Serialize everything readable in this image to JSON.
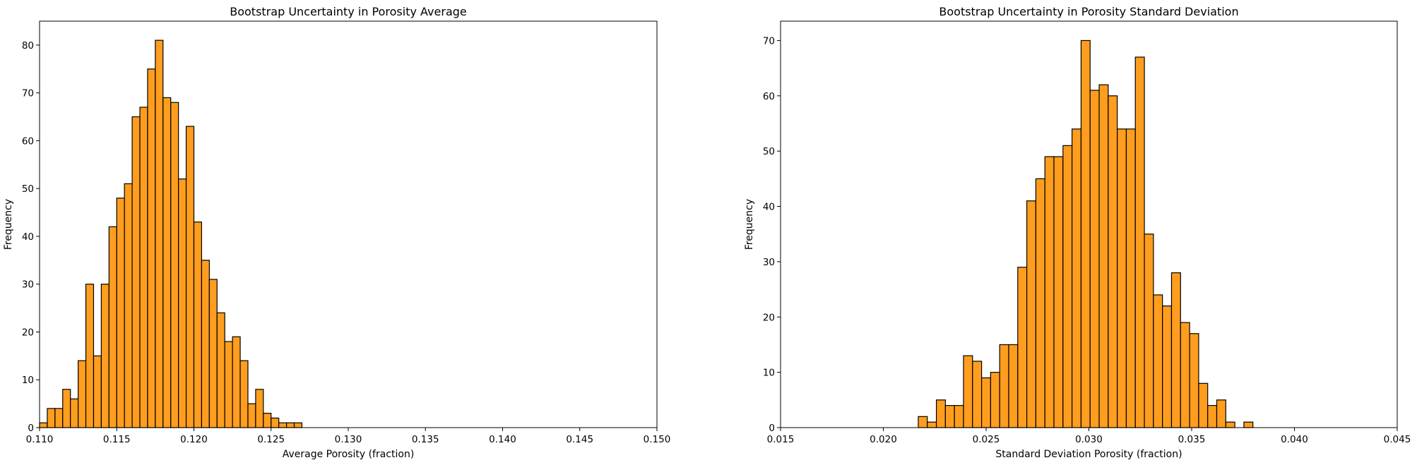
{
  "colors": {
    "bar_fill": "#ff9d1e",
    "bar_edge": "#000000",
    "axes": "#000000"
  },
  "chart_data": [
    {
      "type": "bar",
      "subtype": "histogram",
      "title": "Bootstrap Uncertainty in Porosity Average",
      "xlabel": "Average Porosity (fraction)",
      "ylabel": "Frequency",
      "xlim": [
        0.11,
        0.15
      ],
      "ylim": [
        0,
        85
      ],
      "xticks": [
        "0.110",
        "0.115",
        "0.120",
        "0.125",
        "0.130",
        "0.135",
        "0.140",
        "0.145",
        "0.150"
      ],
      "yticks": [
        "0",
        "10",
        "20",
        "30",
        "40",
        "50",
        "60",
        "70",
        "80"
      ],
      "grid": false,
      "bin_start": 0.11,
      "bin_width": 0.0005,
      "values": [
        1,
        4,
        4,
        8,
        6,
        14,
        30,
        15,
        30,
        42,
        48,
        51,
        65,
        67,
        75,
        81,
        69,
        68,
        52,
        63,
        43,
        35,
        31,
        24,
        18,
        19,
        14,
        5,
        8,
        3,
        2,
        1,
        1,
        1
      ]
    },
    {
      "type": "bar",
      "subtype": "histogram",
      "title": "Bootstrap Uncertainty in Porosity Standard Deviation",
      "xlabel": "Standard Deviation Porosity (fraction)",
      "ylabel": "Frequency",
      "xlim": [
        0.015,
        0.045
      ],
      "ylim": [
        0,
        73.5
      ],
      "xticks": [
        "0.015",
        "0.020",
        "0.025",
        "0.030",
        "0.035",
        "0.040",
        "0.045"
      ],
      "yticks": [
        "0",
        "10",
        "20",
        "30",
        "40",
        "50",
        "60",
        "70"
      ],
      "grid": false,
      "bin_start": 0.0217,
      "bin_width": 0.00044,
      "values": [
        2,
        1,
        5,
        4,
        4,
        13,
        12,
        9,
        10,
        15,
        15,
        29,
        41,
        45,
        49,
        49,
        51,
        54,
        70,
        61,
        62,
        60,
        54,
        54,
        67,
        35,
        24,
        22,
        28,
        19,
        17,
        8,
        4,
        5,
        1,
        0,
        1
      ]
    }
  ]
}
